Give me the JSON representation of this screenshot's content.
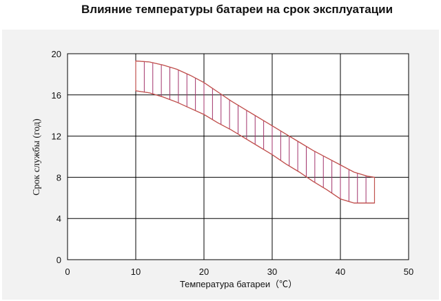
{
  "chart_data": {
    "type": "area",
    "title": "Влияние температуры батареи на срок эксплуатации",
    "xlabel": "Температура батареи（℃）",
    "ylabel": "Срок службы (год)",
    "xlim": [
      0,
      50
    ],
    "ylim": [
      0,
      20
    ],
    "x_ticks": [
      "0",
      "10",
      "20",
      "30",
      "40",
      "50"
    ],
    "y_ticks": [
      "0",
      "4",
      "8",
      "12",
      "16",
      "20"
    ],
    "grid": true,
    "series": [
      {
        "x": [
          10,
          12,
          14,
          16,
          18,
          20,
          22,
          24,
          26,
          28,
          30,
          32,
          34,
          36,
          38,
          40,
          42,
          44,
          45
        ],
        "upper": [
          19.3,
          19.2,
          18.9,
          18.5,
          17.9,
          17.2,
          16.3,
          15.4,
          14.6,
          13.8,
          13.0,
          12.2,
          11.4,
          10.6,
          9.9,
          9.2,
          8.5,
          8.1,
          8.0
        ],
        "lower": [
          16.4,
          16.2,
          15.8,
          15.3,
          14.7,
          14.1,
          13.3,
          12.6,
          11.8,
          11.0,
          10.2,
          9.3,
          8.5,
          7.6,
          6.8,
          5.9,
          5.5,
          5.5,
          5.5
        ]
      }
    ],
    "colors": {
      "band_outline": "#c0504d",
      "band_hatch": "#a0306a",
      "grid": "#000000"
    }
  }
}
